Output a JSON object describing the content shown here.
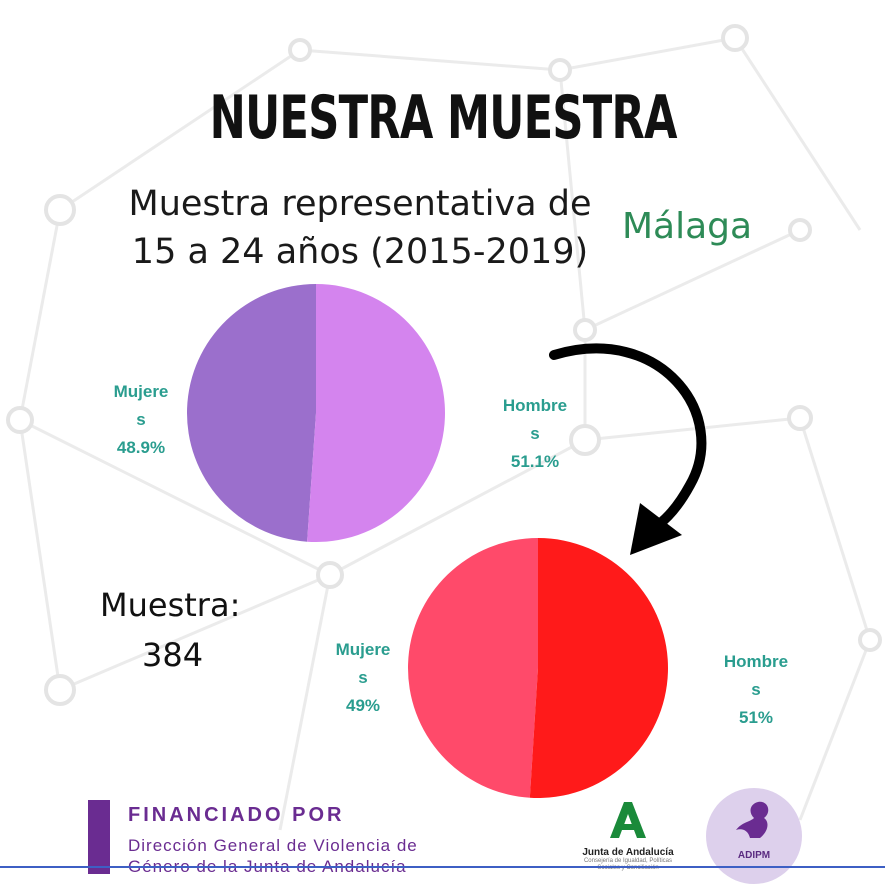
{
  "slide": {
    "title": "NUESTRA MUESTRA",
    "subtitle_line1": "Muestra representativa de",
    "subtitle_line2": "15 a 24 años (2015-2019)",
    "city": "Málaga",
    "sample_label": "Muestra:",
    "sample_value": "384"
  },
  "pie_top": {
    "women_label": [
      "Mujere",
      "s",
      "48.9%"
    ],
    "men_label": [
      "Hombre",
      "s",
      "51.1%"
    ]
  },
  "pie_bottom": {
    "women_label": [
      "Mujere",
      "s",
      "49%"
    ],
    "men_label": [
      "Hombre",
      "s",
      "51%"
    ]
  },
  "footer": {
    "funded_by": "FINANCIADO POR",
    "funder_line1": "Dirección General de Violencia de",
    "funder_line2": "Género de la Junta de Andalucía",
    "logo_junta_text": "Junta de Andalucía",
    "logo_junta_sub": "Consejería de Igualdad, Políticas Sociales y Conciliación",
    "logo_adipm_text": "ADIPM"
  },
  "colors": {
    "accent_green": "#2e8b57",
    "label_teal": "#2a9d8f",
    "purple_dark": "#9b6fcc",
    "purple_light": "#d484ee",
    "red_pink": "#ff4a6a",
    "red": "#ff1a1a",
    "fund_purple": "#6a2c91"
  },
  "chart_data": [
    {
      "type": "pie",
      "categories": [
        "Mujeres",
        "Hombres"
      ],
      "values": [
        48.9,
        51.1
      ],
      "colors": [
        "#9b6fcc",
        "#d484ee"
      ]
    },
    {
      "type": "pie",
      "categories": [
        "Mujeres",
        "Hombres"
      ],
      "values": [
        49,
        51
      ],
      "colors": [
        "#ff4a6a",
        "#ff1a1a"
      ]
    }
  ]
}
